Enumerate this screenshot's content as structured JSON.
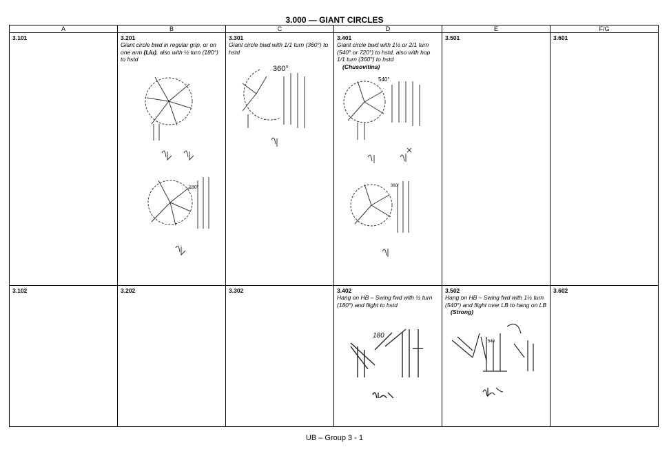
{
  "page": {
    "title": "3.000 — GIANT CIRCLES",
    "footer": "UB – Group 3 - 1"
  },
  "columns": [
    "A",
    "B",
    "C",
    "D",
    "E",
    "F/G"
  ],
  "rows": [
    [
      {
        "code": "3.101"
      },
      {
        "code": "3.201",
        "desc_parts": [
          "Giant circle bwd in regular grip, or on one arm ",
          "(Liu)",
          ", also with ½ turn (180°) to hstd"
        ],
        "figure_labels": [
          "180°"
        ]
      },
      {
        "code": "3.301",
        "desc": "Giant circle bwd with 1/1 turn (360°) to hstd",
        "figure_labels": [
          "360°"
        ]
      },
      {
        "code": "3.401",
        "desc": "Giant circle bwd with 1½ or 2/1 turn (540° or 720°) to hstd, also with hop 1/1 turn (360°) to hstd",
        "name": "(Chusovitina)",
        "figure_labels": [
          "540°",
          "360°"
        ]
      },
      {
        "code": "3.501"
      },
      {
        "code": "3.601"
      }
    ],
    [
      {
        "code": "3.102"
      },
      {
        "code": "3.202"
      },
      {
        "code": "3.302"
      },
      {
        "code": "3.402",
        "desc": "Hang on HB – Swing fwd with ½ turn (180°) and flight to hstd",
        "figure_labels": [
          "180"
        ]
      },
      {
        "code": "3.502",
        "desc": "Hang on HB – Swing fwd with 1½ turn (540°) and flight over LB to hang on LB",
        "name": "(Strong)",
        "figure_labels": [
          "540"
        ]
      },
      {
        "code": "3.602"
      }
    ]
  ]
}
